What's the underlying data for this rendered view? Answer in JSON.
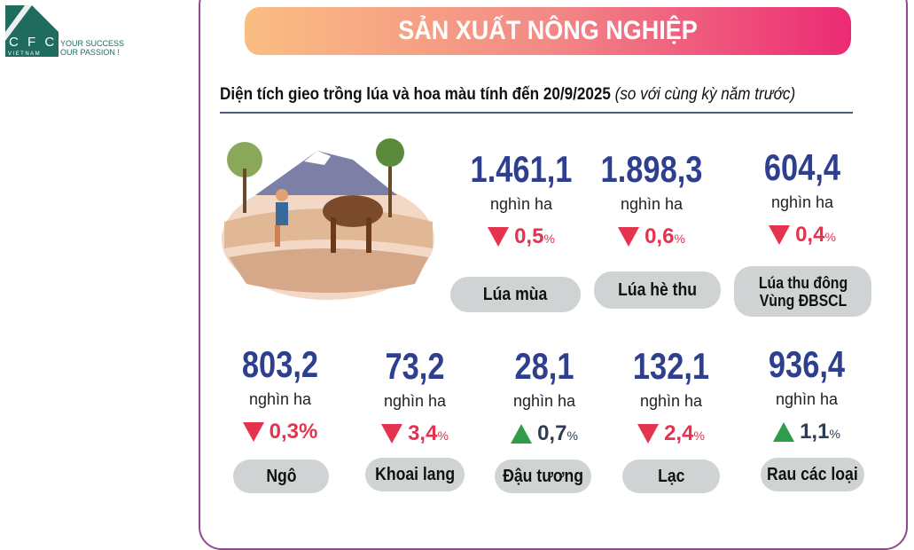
{
  "logo": {
    "brand": "CFC",
    "sub": "VIETNAM",
    "tagline1": "YOUR SUCCESS",
    "tagline2": "OUR PASSION !",
    "color": "#1f6b5e"
  },
  "header": {
    "title": "SẢN XUẤT NÔNG NGHIỆP"
  },
  "subtitle": {
    "bold": "Diện tích gieo trồng lúa và hoa màu tính đến 20/9/2025",
    "italic": "(so với cùng kỳ năm trước)"
  },
  "colors": {
    "number": "#2d3f8e",
    "down": "#e5334f",
    "up": "#2e9c48"
  },
  "stats": [
    {
      "label": "Lúa mùa",
      "value": "1.461,1",
      "unit": "nghìn ha",
      "change": "0,5",
      "pct": "%",
      "direction": "down"
    },
    {
      "label": "Lúa hè thu",
      "value": "1.898,3",
      "unit": "nghìn ha",
      "change": "0,6",
      "pct": "%",
      "direction": "down"
    },
    {
      "label": "Lúa thu đông",
      "label2": "Vùng ĐBSCL",
      "value": "604,4",
      "unit": "nghìn ha",
      "change": "0,4",
      "pct": "%",
      "direction": "down"
    },
    {
      "label": "Ngô",
      "value": "803,2",
      "unit": "nghìn ha",
      "change": "0,3",
      "pct": "%",
      "direction": "down"
    },
    {
      "label": "Khoai lang",
      "value": "73,2",
      "unit": "nghìn ha",
      "change": "3,4",
      "pct": "%",
      "direction": "down"
    },
    {
      "label": "Đậu tương",
      "value": "28,1",
      "unit": "nghìn ha",
      "change": "0,7",
      "pct": "%",
      "direction": "up"
    },
    {
      "label": "Lạc",
      "value": "132,1",
      "unit": "nghìn ha",
      "change": "2,4",
      "pct": "%",
      "direction": "down"
    },
    {
      "label": "Rau các loại",
      "value": "936,4",
      "unit": "nghìn ha",
      "change": "1,1",
      "pct": "%",
      "direction": "up"
    }
  ]
}
